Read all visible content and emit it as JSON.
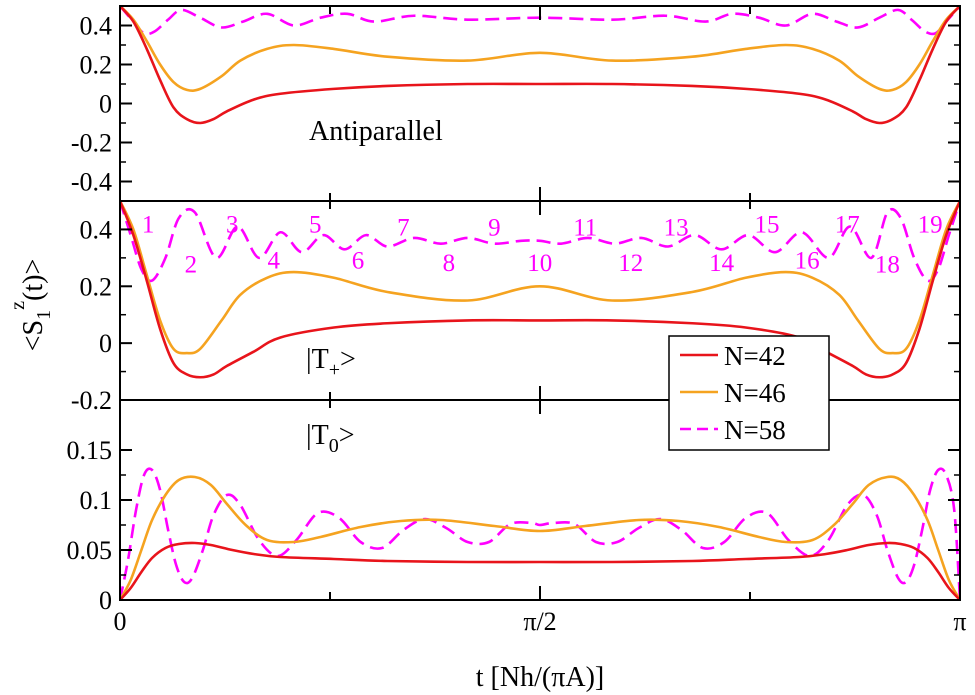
{
  "chart_data": {
    "type": "line",
    "x_axis": {
      "label": "t [Nh/(πA)]",
      "range": [
        0,
        3.14159
      ],
      "ticks": [
        {
          "value": 0,
          "label": "0"
        },
        {
          "value": 1.5708,
          "label": "π/2"
        },
        {
          "value": 3.14159,
          "label": "π"
        }
      ],
      "minor_ticks": [
        0.7854,
        2.3562
      ]
    },
    "y_label": "<S1z(t)>",
    "legend": {
      "placement": "center-right",
      "entries": [
        {
          "label": "N=42",
          "color": "#e8141b",
          "style": "solid"
        },
        {
          "label": "N=46",
          "color": "#f5a320",
          "style": "solid"
        },
        {
          "label": "N=58",
          "color": "#ff00ff",
          "style": "dashed"
        }
      ]
    },
    "panels": [
      {
        "label": "Antiparallel",
        "ylim": [
          -0.5,
          0.5
        ],
        "yticks": [
          {
            "value": 0.4,
            "label": "0.4"
          },
          {
            "value": 0.2,
            "label": "0.2"
          },
          {
            "value": 0,
            "label": "0"
          },
          {
            "value": -0.2,
            "label": "-0.2"
          },
          {
            "value": -0.4,
            "label": "-0.4"
          }
        ],
        "series": [
          {
            "name": "N=42",
            "x": [
              0,
              0.05,
              0.1,
              0.15,
              0.2,
              0.25,
              0.3,
              0.35,
              0.4,
              0.5,
              0.6,
              0.8,
              1.0,
              1.3,
              1.57,
              1.84,
              2.14,
              2.34,
              2.54,
              2.64,
              2.74,
              2.79,
              2.84,
              2.89,
              2.94,
              2.99,
              3.04,
              3.09,
              3.14159
            ],
            "y": [
              0.5,
              0.42,
              0.28,
              0.12,
              -0.02,
              -0.08,
              -0.1,
              -0.08,
              -0.04,
              0.02,
              0.05,
              0.075,
              0.09,
              0.1,
              0.1,
              0.1,
              0.09,
              0.075,
              0.05,
              0.02,
              -0.04,
              -0.08,
              -0.1,
              -0.08,
              -0.02,
              0.12,
              0.28,
              0.42,
              0.5
            ]
          },
          {
            "name": "N=46",
            "x": [
              0,
              0.05,
              0.1,
              0.15,
              0.2,
              0.25,
              0.3,
              0.38,
              0.45,
              0.55,
              0.65,
              0.8,
              1.0,
              1.3,
              1.57,
              1.84,
              2.14,
              2.34,
              2.49,
              2.59,
              2.69,
              2.76,
              2.84,
              2.89,
              2.94,
              2.99,
              3.04,
              3.09,
              3.14159
            ],
            "y": [
              0.5,
              0.43,
              0.32,
              0.2,
              0.11,
              0.07,
              0.075,
              0.14,
              0.22,
              0.28,
              0.3,
              0.28,
              0.24,
              0.22,
              0.26,
              0.22,
              0.24,
              0.28,
              0.3,
              0.28,
              0.22,
              0.14,
              0.075,
              0.07,
              0.11,
              0.2,
              0.32,
              0.43,
              0.5
            ]
          },
          {
            "name": "N=58",
            "x": [
              0,
              0.05,
              0.09,
              0.13,
              0.18,
              0.23,
              0.3,
              0.38,
              0.46,
              0.55,
              0.65,
              0.75,
              0.85,
              0.95,
              1.1,
              1.3,
              1.57,
              1.84,
              2.04,
              2.19,
              2.29,
              2.39,
              2.49,
              2.59,
              2.68,
              2.76,
              2.84,
              2.91,
              2.96,
              3.01,
              3.05,
              3.09,
              3.14159
            ],
            "y": [
              0.5,
              0.42,
              0.36,
              0.37,
              0.43,
              0.48,
              0.44,
              0.39,
              0.42,
              0.46,
              0.4,
              0.44,
              0.46,
              0.42,
              0.45,
              0.43,
              0.44,
              0.43,
              0.45,
              0.42,
              0.46,
              0.44,
              0.4,
              0.46,
              0.42,
              0.39,
              0.44,
              0.48,
              0.43,
              0.37,
              0.36,
              0.42,
              0.5
            ]
          }
        ]
      },
      {
        "label": "|T+>",
        "ylim": [
          -0.2,
          0.5
        ],
        "yticks": [
          {
            "value": 0.4,
            "label": "0.4"
          },
          {
            "value": 0.2,
            "label": "0.2"
          },
          {
            "value": 0,
            "label": "0"
          },
          {
            "value": -0.2,
            "label": "-0.2"
          }
        ],
        "series": [
          {
            "name": "N=42",
            "x": [
              0,
              0.05,
              0.1,
              0.15,
              0.2,
              0.25,
              0.3,
              0.35,
              0.4,
              0.5,
              0.6,
              0.8,
              1.0,
              1.3,
              1.57,
              1.84,
              2.14,
              2.34,
              2.54,
              2.64,
              2.74,
              2.79,
              2.84,
              2.89,
              2.94,
              2.99,
              3.04,
              3.09,
              3.14159
            ],
            "y": [
              0.5,
              0.38,
              0.22,
              0.05,
              -0.07,
              -0.11,
              -0.12,
              -0.11,
              -0.08,
              -0.03,
              0.02,
              0.055,
              0.07,
              0.08,
              0.08,
              0.08,
              0.07,
              0.055,
              0.02,
              -0.03,
              -0.08,
              -0.11,
              -0.12,
              -0.11,
              -0.07,
              0.05,
              0.22,
              0.38,
              0.5
            ]
          },
          {
            "name": "N=46",
            "x": [
              0,
              0.05,
              0.1,
              0.15,
              0.2,
              0.25,
              0.3,
              0.38,
              0.45,
              0.55,
              0.65,
              0.8,
              1.0,
              1.3,
              1.57,
              1.84,
              2.14,
              2.34,
              2.49,
              2.59,
              2.69,
              2.76,
              2.84,
              2.89,
              2.94,
              2.99,
              3.04,
              3.09,
              3.14159
            ],
            "y": [
              0.5,
              0.4,
              0.24,
              0.08,
              -0.02,
              -0.035,
              -0.02,
              0.08,
              0.17,
              0.23,
              0.25,
              0.23,
              0.18,
              0.15,
              0.2,
              0.15,
              0.18,
              0.23,
              0.25,
              0.23,
              0.17,
              0.08,
              -0.02,
              -0.035,
              -0.02,
              0.08,
              0.24,
              0.4,
              0.5
            ]
          },
          {
            "name": "N=58",
            "x": [
              0,
              0.04,
              0.08,
              0.12,
              0.17,
              0.22,
              0.28,
              0.36,
              0.44,
              0.52,
              0.6,
              0.68,
              0.76,
              0.84,
              0.92,
              1.0,
              1.1,
              1.2,
              1.3,
              1.4,
              1.5,
              1.57,
              1.65,
              1.75,
              1.85,
              1.95,
              2.05,
              2.15,
              2.25,
              2.35,
              2.45,
              2.55,
              2.65,
              2.73,
              2.81,
              2.87,
              2.92,
              2.97,
              3.02,
              3.06,
              3.1,
              3.14159
            ],
            "y": [
              0.5,
              0.38,
              0.26,
              0.22,
              0.3,
              0.44,
              0.46,
              0.3,
              0.41,
              0.3,
              0.39,
              0.32,
              0.38,
              0.33,
              0.38,
              0.34,
              0.37,
              0.35,
              0.37,
              0.35,
              0.36,
              0.36,
              0.35,
              0.37,
              0.35,
              0.37,
              0.34,
              0.38,
              0.33,
              0.38,
              0.32,
              0.39,
              0.3,
              0.41,
              0.3,
              0.46,
              0.44,
              0.3,
              0.22,
              0.26,
              0.38,
              0.5
            ]
          }
        ],
        "annotations": [
          {
            "text": "1",
            "x": 0.105,
            "y": 0.42
          },
          {
            "text": "2",
            "x": 0.265,
            "y": 0.28
          },
          {
            "text": "3",
            "x": 0.42,
            "y": 0.42
          },
          {
            "text": "4",
            "x": 0.575,
            "y": 0.295
          },
          {
            "text": "5",
            "x": 0.73,
            "y": 0.42
          },
          {
            "text": "6",
            "x": 0.89,
            "y": 0.295
          },
          {
            "text": "7",
            "x": 1.06,
            "y": 0.41
          },
          {
            "text": "8",
            "x": 1.23,
            "y": 0.285
          },
          {
            "text": "9",
            "x": 1.4,
            "y": 0.41
          },
          {
            "text": "10",
            "x": 1.57,
            "y": 0.285
          },
          {
            "text": "11",
            "x": 1.74,
            "y": 0.41
          },
          {
            "text": "12",
            "x": 1.91,
            "y": 0.285
          },
          {
            "text": "13",
            "x": 2.08,
            "y": 0.41
          },
          {
            "text": "14",
            "x": 2.25,
            "y": 0.285
          },
          {
            "text": "15",
            "x": 2.42,
            "y": 0.42
          },
          {
            "text": "16",
            "x": 2.57,
            "y": 0.295
          },
          {
            "text": "17",
            "x": 2.72,
            "y": 0.42
          },
          {
            "text": "18",
            "x": 2.87,
            "y": 0.28
          },
          {
            "text": "19",
            "x": 3.03,
            "y": 0.42
          }
        ]
      },
      {
        "label": "|T0>",
        "ylim": [
          0,
          0.2
        ],
        "yticks": [
          {
            "value": 0.15,
            "label": "0.15"
          },
          {
            "value": 0.1,
            "label": "0.1"
          },
          {
            "value": 0.05,
            "label": "0.05"
          },
          {
            "value": 0,
            "label": "0"
          }
        ],
        "series": [
          {
            "name": "N=42",
            "x": [
              0,
              0.04,
              0.08,
              0.12,
              0.17,
              0.22,
              0.28,
              0.34,
              0.42,
              0.5,
              0.6,
              0.8,
              1.0,
              1.3,
              1.57,
              1.84,
              2.14,
              2.34,
              2.54,
              2.64,
              2.72,
              2.8,
              2.87,
              2.92,
              2.97,
              3.02,
              3.06,
              3.1,
              3.14159
            ],
            "y": [
              0,
              0.012,
              0.028,
              0.042,
              0.052,
              0.056,
              0.057,
              0.055,
              0.05,
              0.046,
              0.043,
              0.041,
              0.039,
              0.038,
              0.038,
              0.038,
              0.039,
              0.041,
              0.043,
              0.046,
              0.05,
              0.055,
              0.057,
              0.056,
              0.052,
              0.042,
              0.028,
              0.012,
              0
            ]
          },
          {
            "name": "N=46",
            "x": [
              0,
              0.04,
              0.08,
              0.12,
              0.17,
              0.22,
              0.28,
              0.34,
              0.4,
              0.47,
              0.55,
              0.65,
              0.75,
              0.9,
              1.05,
              1.2,
              1.4,
              1.57,
              1.74,
              1.94,
              2.09,
              2.24,
              2.39,
              2.49,
              2.59,
              2.67,
              2.74,
              2.8,
              2.87,
              2.92,
              2.97,
              3.02,
              3.06,
              3.1,
              3.14159
            ],
            "y": [
              0,
              0.02,
              0.05,
              0.08,
              0.105,
              0.12,
              0.123,
              0.115,
              0.096,
              0.075,
              0.06,
              0.058,
              0.063,
              0.073,
              0.079,
              0.08,
              0.074,
              0.069,
              0.074,
              0.08,
              0.079,
              0.073,
              0.063,
              0.058,
              0.06,
              0.075,
              0.096,
              0.115,
              0.123,
              0.12,
              0.105,
              0.08,
              0.05,
              0.02,
              0
            ]
          },
          {
            "name": "N=58",
            "x": [
              0,
              0.03,
              0.06,
              0.09,
              0.12,
              0.15,
              0.18,
              0.21,
              0.24,
              0.27,
              0.31,
              0.35,
              0.4,
              0.45,
              0.52,
              0.59,
              0.66,
              0.74,
              0.82,
              0.9,
              0.98,
              1.06,
              1.14,
              1.22,
              1.3,
              1.38,
              1.46,
              1.54,
              1.57,
              1.62,
              1.7,
              1.78,
              1.86,
              1.94,
              2.02,
              2.1,
              2.18,
              2.26,
              2.34,
              2.42,
              2.5,
              2.58,
              2.65,
              2.72,
              2.78,
              2.83,
              2.87,
              2.91,
              2.94,
              2.97,
              3.0,
              3.03,
              3.06,
              3.09,
              3.12,
              3.14159
            ],
            "y": [
              0,
              0.04,
              0.09,
              0.125,
              0.13,
              0.11,
              0.07,
              0.035,
              0.018,
              0.022,
              0.05,
              0.085,
              0.105,
              0.095,
              0.06,
              0.044,
              0.06,
              0.087,
              0.082,
              0.058,
              0.052,
              0.07,
              0.081,
              0.072,
              0.058,
              0.058,
              0.076,
              0.077,
              0.075,
              0.077,
              0.076,
              0.058,
              0.058,
              0.072,
              0.081,
              0.07,
              0.052,
              0.058,
              0.082,
              0.087,
              0.06,
              0.044,
              0.06,
              0.095,
              0.105,
              0.085,
              0.05,
              0.022,
              0.018,
              0.035,
              0.07,
              0.11,
              0.13,
              0.125,
              0.09,
              0
            ]
          }
        ]
      }
    ]
  }
}
